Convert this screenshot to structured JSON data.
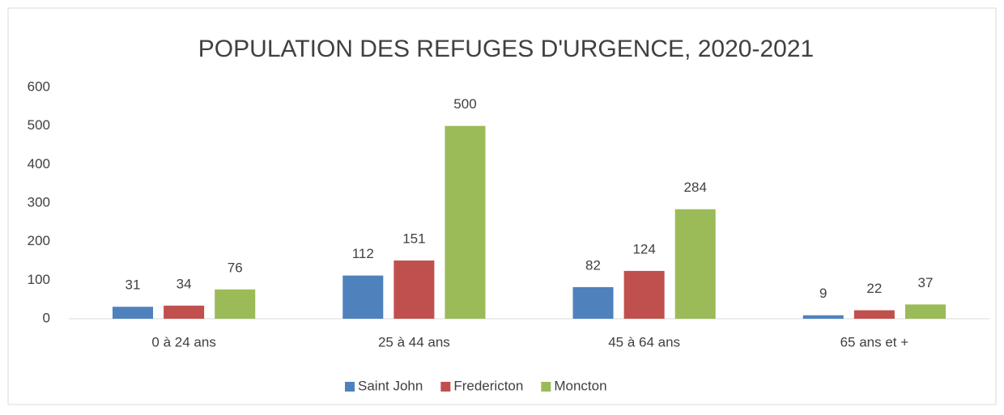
{
  "chart_data": {
    "type": "bar",
    "title": "POPULATION DES REFUGES D'URGENCE, 2020-2021",
    "categories": [
      "0 à 24 ans",
      "25 à 44 ans",
      "45 à 64 ans",
      "65 ans et +"
    ],
    "series": [
      {
        "name": "Saint John",
        "color": "#4f81bd",
        "values": [
          31,
          112,
          82,
          9
        ]
      },
      {
        "name": "Fredericton",
        "color": "#c0504d",
        "values": [
          34,
          151,
          124,
          22
        ]
      },
      {
        "name": "Moncton",
        "color": "#9bbb59",
        "values": [
          76,
          500,
          284,
          37
        ]
      }
    ],
    "ylim": [
      0,
      600
    ],
    "yticks": [
      0,
      100,
      200,
      300,
      400,
      500,
      600
    ],
    "grid": false,
    "legend": "bottom"
  }
}
